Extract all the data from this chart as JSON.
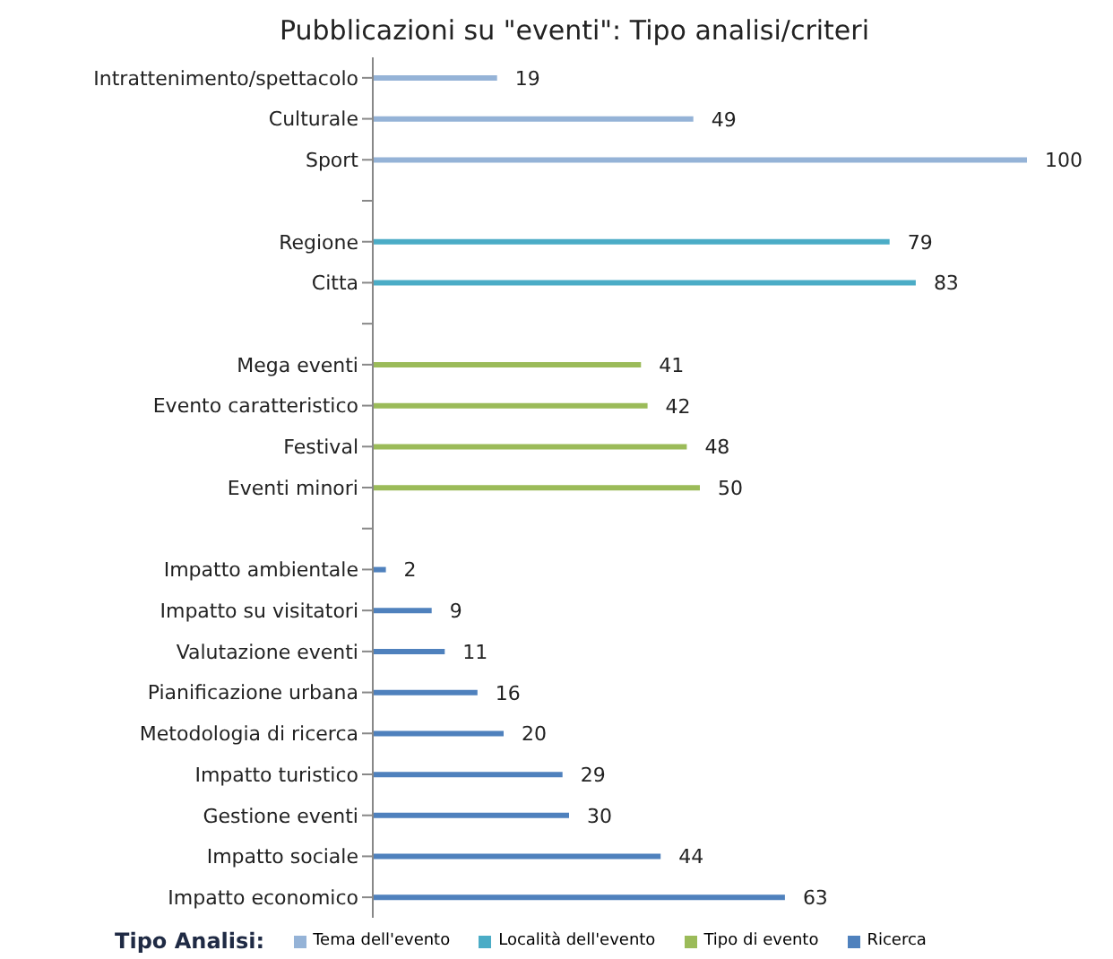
{
  "chart_data": {
    "type": "bar",
    "orientation": "horizontal",
    "stacked": true,
    "title": "Pubblicazioni su \"eventi\": Tipo analisi/criteri",
    "legend_title": "Tipo Analisi:",
    "legend": "bottom",
    "data_labels": true,
    "tick_labels": "y",
    "categories": [
      "Intrattenimento/spettacolo",
      "Culturale",
      "Sport",
      null,
      "Regione",
      "Citta",
      null,
      "Mega eventi",
      "Evento caratteristico",
      "Festival",
      "Eventi minori",
      null,
      "Impatto ambientale",
      "Impatto su visitatori",
      "Valutazione eventi",
      "Pianificazione urbana",
      "Metodologia di ricerca",
      "Impatto turistico",
      "Gestione eventi",
      "Impatto sociale",
      "Impatto economico"
    ],
    "series": [
      {
        "name": "Tema dell'evento",
        "color": "#95b3d7",
        "values": [
          19,
          49,
          100,
          null,
          null,
          null,
          null,
          null,
          null,
          null,
          null,
          null,
          null,
          null,
          null,
          null,
          null,
          null,
          null,
          null,
          null
        ]
      },
      {
        "name": "Località dell'evento",
        "color": "#4bacc6",
        "values": [
          null,
          null,
          null,
          null,
          79,
          83,
          null,
          null,
          null,
          null,
          null,
          null,
          null,
          null,
          null,
          null,
          null,
          null,
          null,
          null,
          null
        ]
      },
      {
        "name": "Tipo di evento",
        "color": "#9bbb59",
        "values": [
          null,
          null,
          null,
          null,
          null,
          null,
          null,
          41,
          42,
          48,
          50,
          null,
          null,
          null,
          null,
          null,
          null,
          null,
          null,
          null,
          null
        ]
      },
      {
        "name": "Ricerca",
        "color": "#4f81bd",
        "values": [
          null,
          null,
          null,
          null,
          null,
          null,
          null,
          null,
          null,
          null,
          null,
          null,
          2,
          9,
          11,
          16,
          20,
          29,
          30,
          44,
          63
        ]
      }
    ]
  }
}
